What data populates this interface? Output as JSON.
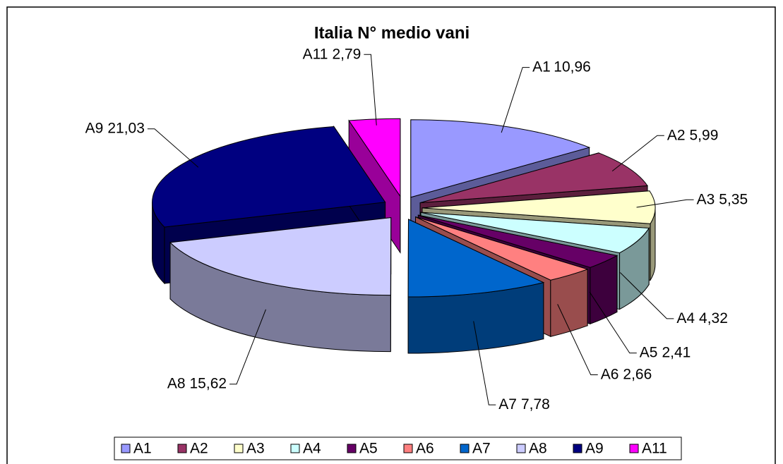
{
  "chart_data": {
    "type": "pie",
    "title": "Italia N° medio vani",
    "categories": [
      "A1",
      "A2",
      "A3",
      "A4",
      "A5",
      "A6",
      "A7",
      "A8",
      "A9",
      "A11"
    ],
    "values": [
      10.96,
      5.99,
      5.35,
      4.32,
      2.41,
      2.66,
      7.78,
      15.62,
      21.03,
      2.79
    ],
    "value_labels": [
      "10,96",
      "5,99",
      "5,35",
      "4,32",
      "2,41",
      "2,66",
      "7,78",
      "15,62",
      "21,03",
      "2,79"
    ],
    "colors": [
      "#9999ff",
      "#993366",
      "#ffffcc",
      "#ccffff",
      "#660066",
      "#ff8080",
      "#0066cc",
      "#ccccff",
      "#000080",
      "#ff00ff"
    ],
    "legend": "bottom"
  }
}
